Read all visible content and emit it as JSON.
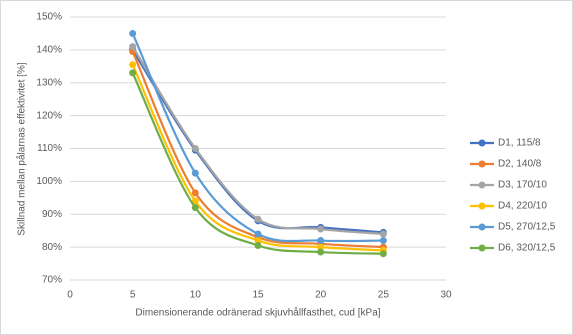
{
  "chart_data": {
    "type": "line",
    "x_label": "Dimensionerande odränerad skjuvhållfasthet, cud [kPa]",
    "y_label": "Skillnad mellan pålarnas effektivitet [%]",
    "x": [
      5,
      10,
      15,
      20,
      25
    ],
    "series": [
      {
        "name": "D1, 115/8",
        "color": "#4472c4",
        "values": [
          140,
          109.5,
          88,
          86,
          84.5
        ]
      },
      {
        "name": "D2, 140/8",
        "color": "#ed7d31",
        "values": [
          139.5,
          96.5,
          83,
          81,
          80
        ]
      },
      {
        "name": "D3, 170/10",
        "color": "#a5a5a5",
        "values": [
          141,
          110,
          88.5,
          85.5,
          84
        ]
      },
      {
        "name": "D4, 220/10",
        "color": "#ffc000",
        "values": [
          135.5,
          94,
          82,
          80,
          79
        ]
      },
      {
        "name": "D5, 270/12,5",
        "color": "#5b9bd5",
        "values": [
          145,
          102.5,
          84,
          82,
          82
        ]
      },
      {
        "name": "D6, 320/12,5",
        "color": "#70ad47",
        "values": [
          133,
          92,
          80.5,
          78.5,
          78
        ]
      }
    ],
    "xlim": [
      0,
      30
    ],
    "xticks": [
      0,
      5,
      10,
      15,
      20,
      25,
      30
    ],
    "ylim": [
      70,
      150
    ],
    "yticks": [
      {
        "value": 70,
        "label": "70%"
      },
      {
        "value": 80,
        "label": "80%"
      },
      {
        "value": 90,
        "label": "90%"
      },
      {
        "value": 100,
        "label": "100%"
      },
      {
        "value": 110,
        "label": "110%"
      },
      {
        "value": 120,
        "label": "120%"
      },
      {
        "value": 130,
        "label": "130%"
      },
      {
        "value": 140,
        "label": "140%"
      },
      {
        "value": 150,
        "label": "150%"
      }
    ],
    "grid": true,
    "smooth": true,
    "legend": "right"
  }
}
